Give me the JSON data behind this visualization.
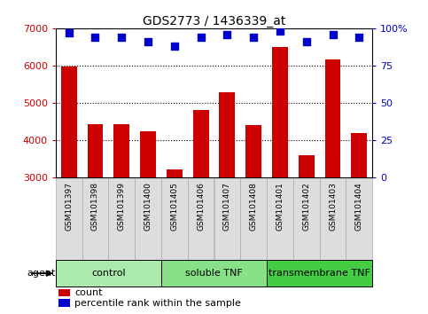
{
  "title": "GDS2773 / 1436339_at",
  "samples": [
    "GSM101397",
    "GSM101398",
    "GSM101399",
    "GSM101400",
    "GSM101405",
    "GSM101406",
    "GSM101407",
    "GSM101408",
    "GSM101401",
    "GSM101402",
    "GSM101403",
    "GSM101404"
  ],
  "counts": [
    5980,
    4440,
    4430,
    4250,
    3230,
    4820,
    5280,
    4410,
    6490,
    3590,
    6160,
    4200
  ],
  "percentile": [
    97,
    94,
    94,
    91,
    88,
    94,
    96,
    94,
    98,
    91,
    96,
    94
  ],
  "groups": [
    {
      "label": "control",
      "start": 0,
      "end": 4,
      "color": "#aaeaaa"
    },
    {
      "label": "soluble TNF",
      "start": 4,
      "end": 8,
      "color": "#88e088"
    },
    {
      "label": "transmembrane TNF",
      "start": 8,
      "end": 12,
      "color": "#44cc44"
    }
  ],
  "bar_color": "#cc0000",
  "dot_color": "#0000cc",
  "ylim_left": [
    3000,
    7000
  ],
  "ylim_right": [
    0,
    100
  ],
  "yticks_left": [
    3000,
    4000,
    5000,
    6000,
    7000
  ],
  "yticks_right": [
    0,
    25,
    50,
    75,
    100
  ],
  "yticklabels_right": [
    "0",
    "25",
    "50",
    "75",
    "100%"
  ],
  "agent_label": "agent",
  "legend_count": "count",
  "legend_percentile": "percentile rank within the sample",
  "left_axis_color": "#cc0000",
  "right_axis_color": "#0000cc",
  "bar_width": 0.6,
  "dot_size": 35,
  "xtick_bg": "#dddddd"
}
